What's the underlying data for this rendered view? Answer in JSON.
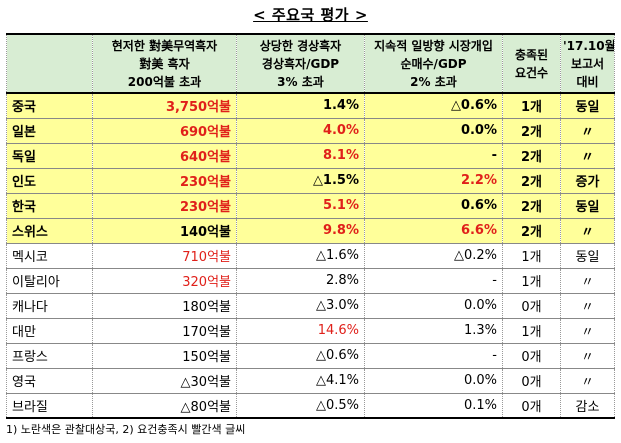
{
  "title": "< 주요국 평가 >",
  "headers": {
    "col1_line1": "현저한 對美무역흑자",
    "col1_line2": "對美 흑자",
    "col1_line3": "200억불 초과",
    "col2_line1": "상당한 경상흑자",
    "col2_line2": "경상흑자/GDP",
    "col2_line3": "3% 초과",
    "col3_line1": "지속적 일방향 시장개입",
    "col3_line2": "순매수/GDP",
    "col3_line3": "2% 초과",
    "col4_line1": "충족된",
    "col4_line2": "요건수",
    "col5_line1": "'17.10월",
    "col5_line2": "보고서",
    "col5_line3": "대비"
  },
  "rows": [
    {
      "country": "중국",
      "surplus": "3,750억불",
      "surplus_red": true,
      "ca": "1.4%",
      "ca_red": false,
      "fx": "△0.6%",
      "fx_red": false,
      "count": "1개",
      "compare": "동일",
      "highlight": true
    },
    {
      "country": "일본",
      "surplus": "690억불",
      "surplus_red": true,
      "ca": "4.0%",
      "ca_red": true,
      "fx": "0.0%",
      "fx_red": false,
      "count": "2개",
      "compare": "〃",
      "highlight": true
    },
    {
      "country": "독일",
      "surplus": "640억불",
      "surplus_red": true,
      "ca": "8.1%",
      "ca_red": true,
      "fx": "-",
      "fx_red": false,
      "count": "2개",
      "compare": "〃",
      "highlight": true
    },
    {
      "country": "인도",
      "surplus": "230억불",
      "surplus_red": true,
      "ca": "△1.5%",
      "ca_red": false,
      "fx": "2.2%",
      "fx_red": true,
      "count": "2개",
      "compare": "증가",
      "highlight": true
    },
    {
      "country": "한국",
      "surplus": "230억불",
      "surplus_red": true,
      "ca": "5.1%",
      "ca_red": true,
      "fx": "0.6%",
      "fx_red": false,
      "count": "2개",
      "compare": "동일",
      "highlight": true
    },
    {
      "country": "스위스",
      "surplus": "140억불",
      "surplus_red": false,
      "ca": "9.8%",
      "ca_red": true,
      "fx": "6.6%",
      "fx_red": true,
      "count": "2개",
      "compare": "〃",
      "highlight": true
    },
    {
      "country": "멕시코",
      "surplus": "710억불",
      "surplus_red": true,
      "ca": "△1.6%",
      "ca_red": false,
      "fx": "△0.2%",
      "fx_red": false,
      "count": "1개",
      "compare": "동일",
      "highlight": false
    },
    {
      "country": "이탈리아",
      "surplus": "320억불",
      "surplus_red": true,
      "ca": "2.8%",
      "ca_red": false,
      "fx": "-",
      "fx_red": false,
      "count": "1개",
      "compare": "〃",
      "highlight": false
    },
    {
      "country": "캐나다",
      "surplus": "180억불",
      "surplus_red": false,
      "ca": "△3.0%",
      "ca_red": false,
      "fx": "0.0%",
      "fx_red": false,
      "count": "0개",
      "compare": "〃",
      "highlight": false
    },
    {
      "country": "대만",
      "surplus": "170억불",
      "surplus_red": false,
      "ca": "14.6%",
      "ca_red": true,
      "fx": "1.3%",
      "fx_red": false,
      "count": "1개",
      "compare": "〃",
      "highlight": false
    },
    {
      "country": "프랑스",
      "surplus": "150억불",
      "surplus_red": false,
      "ca": "△0.6%",
      "ca_red": false,
      "fx": "-",
      "fx_red": false,
      "count": "0개",
      "compare": "〃",
      "highlight": false
    },
    {
      "country": "영국",
      "surplus": "△30억불",
      "surplus_red": false,
      "ca": "△4.1%",
      "ca_red": false,
      "fx": "0.0%",
      "fx_red": false,
      "count": "0개",
      "compare": "〃",
      "highlight": false
    },
    {
      "country": "브라질",
      "surplus": "△80억불",
      "surplus_red": false,
      "ca": "△0.5%",
      "ca_red": false,
      "fx": "0.1%",
      "fx_red": false,
      "count": "0개",
      "compare": "감소",
      "highlight": false
    }
  ],
  "footnote": "1) 노란색은 관찰대상국, 2) 요건충족시 빨간색 글씨",
  "colors": {
    "header_bg": "#d8edd3",
    "highlight_bg": "#ffff9a",
    "red_text": "#e0201a"
  }
}
